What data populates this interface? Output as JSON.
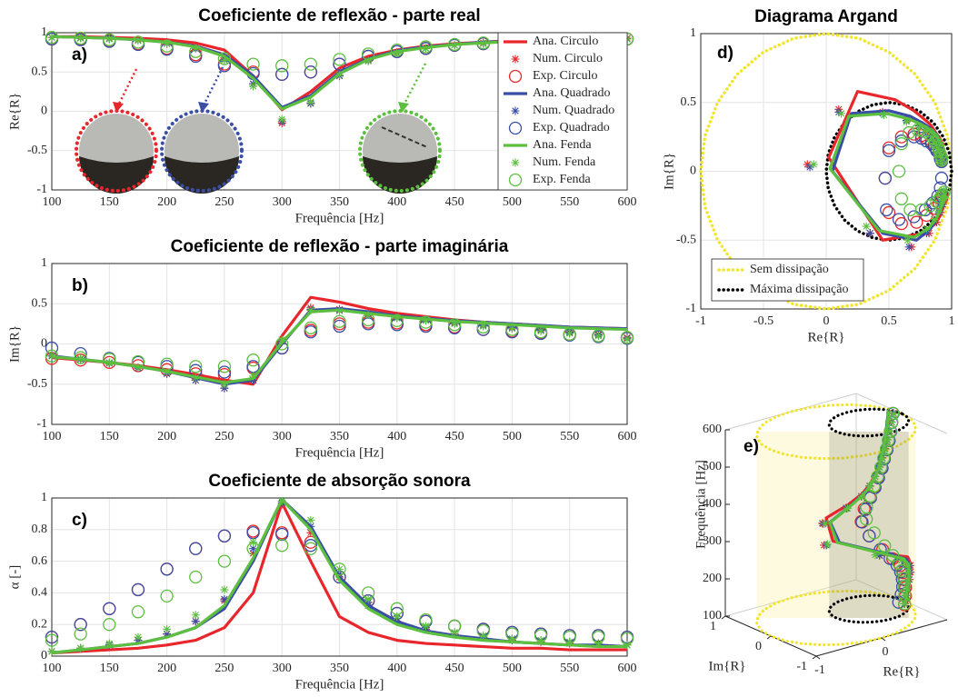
{
  "chart_data": [
    {
      "type": "line",
      "title": "Coeficiente de reflexão - parte real",
      "xlabel": "Frequência [Hz]",
      "ylabel": "Re{R}",
      "annotation": "a)",
      "grid": true,
      "legend": "upper right",
      "x": [
        100,
        125,
        150,
        175,
        200,
        225,
        250,
        275,
        300,
        325,
        350,
        375,
        400,
        425,
        450,
        475,
        500,
        525,
        550,
        575,
        600
      ],
      "xlim": [
        100,
        600
      ],
      "xticks": [
        100,
        150,
        200,
        250,
        300,
        350,
        400,
        450,
        500,
        550,
        600
      ],
      "ylim": [
        -1,
        1
      ],
      "yticks": [
        -1,
        -0.5,
        0,
        0.5,
        1
      ],
      "series": [
        {
          "name": "Ana. Circulo",
          "color": "#e8262b",
          "marker": "none",
          "values": [
            0.95,
            0.95,
            0.94,
            0.93,
            0.91,
            0.87,
            0.78,
            0.45,
            0.02,
            0.25,
            0.55,
            0.7,
            0.78,
            0.83,
            0.86,
            0.88,
            0.9,
            0.91,
            0.92,
            0.93,
            0.94
          ]
        },
        {
          "name": "Num. Circulo",
          "color": "#e8262b",
          "marker": "*",
          "values": [
            0.94,
            0.94,
            0.93,
            0.91,
            0.88,
            0.82,
            0.68,
            0.35,
            -0.15,
            0.1,
            0.45,
            0.65,
            0.75,
            0.8,
            0.84,
            0.87,
            0.89,
            0.9,
            0.91,
            0.92,
            0.93
          ]
        },
        {
          "name": "Exp. Circulo",
          "color": "#e8262b",
          "marker": "o",
          "values": [
            0.92,
            0.92,
            0.9,
            0.86,
            0.8,
            0.72,
            0.6,
            0.5,
            0.47,
            0.5,
            0.6,
            0.7,
            0.76,
            0.8,
            0.84,
            0.86,
            0.88,
            0.9,
            0.91,
            0.92,
            0.92
          ]
        },
        {
          "name": "Ana. Quadrado",
          "color": "#3a4ea6",
          "marker": "none",
          "values": [
            0.95,
            0.94,
            0.93,
            0.91,
            0.88,
            0.83,
            0.72,
            0.45,
            0.05,
            0.2,
            0.5,
            0.67,
            0.77,
            0.82,
            0.85,
            0.88,
            0.89,
            0.9,
            0.91,
            0.92,
            0.93
          ]
        },
        {
          "name": "Num. Quadrado",
          "color": "#3a4ea6",
          "marker": "*",
          "values": [
            0.94,
            0.93,
            0.92,
            0.9,
            0.86,
            0.8,
            0.66,
            0.35,
            -0.13,
            0.1,
            0.45,
            0.64,
            0.74,
            0.8,
            0.84,
            0.86,
            0.88,
            0.9,
            0.91,
            0.92,
            0.92
          ]
        },
        {
          "name": "Exp. Quadrado",
          "color": "#3a4ea6",
          "marker": "o",
          "values": [
            0.92,
            0.91,
            0.89,
            0.85,
            0.79,
            0.7,
            0.58,
            0.48,
            0.47,
            0.5,
            0.6,
            0.7,
            0.76,
            0.8,
            0.84,
            0.86,
            0.88,
            0.9,
            0.91,
            0.91,
            0.92
          ]
        },
        {
          "name": "Ana. Fenda",
          "color": "#5cbf3f",
          "marker": "none",
          "values": [
            0.95,
            0.94,
            0.93,
            0.91,
            0.88,
            0.82,
            0.7,
            0.42,
            0.03,
            0.18,
            0.48,
            0.66,
            0.76,
            0.81,
            0.85,
            0.87,
            0.89,
            0.9,
            0.91,
            0.92,
            0.93
          ]
        },
        {
          "name": "Num. Fenda",
          "color": "#5cbf3f",
          "marker": "*",
          "values": [
            0.94,
            0.93,
            0.92,
            0.9,
            0.86,
            0.8,
            0.65,
            0.32,
            -0.1,
            0.12,
            0.46,
            0.64,
            0.74,
            0.8,
            0.84,
            0.86,
            0.88,
            0.9,
            0.91,
            0.92,
            0.92
          ]
        },
        {
          "name": "Exp. Fenda",
          "color": "#5cbf3f",
          "marker": "o",
          "values": [
            0.94,
            0.93,
            0.91,
            0.88,
            0.83,
            0.76,
            0.67,
            0.6,
            0.58,
            0.6,
            0.66,
            0.73,
            0.78,
            0.82,
            0.85,
            0.87,
            0.89,
            0.9,
            0.91,
            0.92,
            0.92
          ]
        }
      ]
    },
    {
      "type": "line",
      "title": "Coeficiente de reflexão - parte imaginária",
      "xlabel": "Frequência [Hz]",
      "ylabel": "Im{R}",
      "annotation": "b)",
      "grid": true,
      "x": [
        100,
        125,
        150,
        175,
        200,
        225,
        250,
        275,
        300,
        325,
        350,
        375,
        400,
        425,
        450,
        475,
        500,
        525,
        550,
        575,
        600
      ],
      "xlim": [
        100,
        600
      ],
      "xticks": [
        100,
        150,
        200,
        250,
        300,
        350,
        400,
        450,
        500,
        550,
        600
      ],
      "ylim": [
        -1,
        1
      ],
      "yticks": [
        -1,
        -0.5,
        0,
        0.5,
        1
      ],
      "series": [
        {
          "color": "#e8262b",
          "marker": "none",
          "values": [
            -0.17,
            -0.2,
            -0.23,
            -0.27,
            -0.32,
            -0.38,
            -0.45,
            -0.5,
            0.1,
            0.58,
            0.52,
            0.44,
            0.38,
            0.34,
            0.3,
            0.27,
            0.25,
            0.23,
            0.21,
            0.2,
            0.19
          ]
        },
        {
          "color": "#e8262b",
          "marker": "*",
          "values": [
            -0.15,
            -0.19,
            -0.24,
            -0.3,
            -0.37,
            -0.45,
            -0.55,
            -0.45,
            0.05,
            0.45,
            0.43,
            0.38,
            0.34,
            0.3,
            0.27,
            0.24,
            0.21,
            0.18,
            0.15,
            0.12,
            0.08
          ]
        },
        {
          "color": "#e8262b",
          "marker": "o",
          "values": [
            -0.18,
            -0.2,
            -0.23,
            -0.27,
            -0.32,
            -0.37,
            -0.38,
            -0.3,
            -0.05,
            0.17,
            0.25,
            0.27,
            0.26,
            0.24,
            0.21,
            0.18,
            0.16,
            0.14,
            0.12,
            0.1,
            0.08
          ]
        },
        {
          "color": "#3a4ea6",
          "marker": "none",
          "values": [
            -0.15,
            -0.19,
            -0.23,
            -0.28,
            -0.34,
            -0.42,
            -0.5,
            -0.45,
            0.0,
            0.42,
            0.44,
            0.4,
            0.35,
            0.32,
            0.29,
            0.27,
            0.25,
            0.23,
            0.21,
            0.2,
            0.19
          ]
        },
        {
          "color": "#3a4ea6",
          "marker": "*",
          "values": [
            -0.15,
            -0.19,
            -0.24,
            -0.3,
            -0.37,
            -0.45,
            -0.55,
            -0.45,
            0.03,
            0.43,
            0.42,
            0.37,
            0.33,
            0.3,
            0.26,
            0.23,
            0.2,
            0.17,
            0.14,
            0.11,
            0.07
          ]
        },
        {
          "color": "#3a4ea6",
          "marker": "o",
          "values": [
            -0.05,
            -0.12,
            -0.18,
            -0.23,
            -0.28,
            -0.33,
            -0.35,
            -0.28,
            -0.05,
            0.15,
            0.22,
            0.25,
            0.24,
            0.22,
            0.2,
            0.18,
            0.15,
            0.13,
            0.11,
            0.09,
            0.07
          ]
        },
        {
          "color": "#5cbf3f",
          "marker": "none",
          "values": [
            -0.16,
            -0.19,
            -0.23,
            -0.28,
            -0.34,
            -0.41,
            -0.48,
            -0.43,
            0.02,
            0.4,
            0.42,
            0.38,
            0.34,
            0.31,
            0.28,
            0.26,
            0.24,
            0.22,
            0.2,
            0.19,
            0.18
          ]
        },
        {
          "color": "#5cbf3f",
          "marker": "*",
          "values": [
            -0.14,
            -0.18,
            -0.23,
            -0.29,
            -0.35,
            -0.42,
            -0.5,
            -0.4,
            0.05,
            0.42,
            0.41,
            0.36,
            0.32,
            0.29,
            0.25,
            0.22,
            0.19,
            0.16,
            0.13,
            0.1,
            0.06
          ]
        },
        {
          "color": "#5cbf3f",
          "marker": "o",
          "values": [
            -0.15,
            -0.17,
            -0.19,
            -0.22,
            -0.25,
            -0.28,
            -0.28,
            -0.2,
            0.0,
            0.2,
            0.28,
            0.3,
            0.29,
            0.27,
            0.24,
            0.21,
            0.18,
            0.15,
            0.12,
            0.1,
            0.08
          ]
        }
      ]
    },
    {
      "type": "line",
      "title": "Coeficiente de absorção sonora",
      "xlabel": "Frequência [Hz]",
      "ylabel": "α [-]",
      "annotation": "c)",
      "grid": true,
      "x": [
        100,
        125,
        150,
        175,
        200,
        225,
        250,
        275,
        300,
        325,
        350,
        375,
        400,
        425,
        450,
        475,
        500,
        525,
        550,
        575,
        600
      ],
      "xlim": [
        100,
        600
      ],
      "xticks": [
        100,
        150,
        200,
        250,
        300,
        350,
        400,
        450,
        500,
        550,
        600
      ],
      "ylim": [
        0,
        1
      ],
      "yticks": [
        0,
        0.2,
        0.4,
        0.6,
        0.8,
        1
      ],
      "series": [
        {
          "color": "#e8262b",
          "marker": "none",
          "values": [
            0.02,
            0.03,
            0.04,
            0.05,
            0.07,
            0.1,
            0.18,
            0.4,
            0.97,
            0.6,
            0.25,
            0.15,
            0.1,
            0.08,
            0.07,
            0.06,
            0.05,
            0.05,
            0.04,
            0.04,
            0.04
          ]
        },
        {
          "color": "#e8262b",
          "marker": "*",
          "values": [
            0.03,
            0.05,
            0.07,
            0.1,
            0.14,
            0.22,
            0.35,
            0.65,
            0.96,
            0.78,
            0.5,
            0.32,
            0.22,
            0.17,
            0.14,
            0.12,
            0.1,
            0.09,
            0.08,
            0.08,
            0.07
          ]
        },
        {
          "color": "#e8262b",
          "marker": "o",
          "values": [
            0.12,
            0.2,
            0.3,
            0.42,
            0.55,
            0.68,
            0.76,
            0.79,
            0.78,
            0.72,
            0.5,
            0.35,
            0.27,
            0.22,
            0.19,
            0.17,
            0.15,
            0.14,
            0.13,
            0.13,
            0.12
          ]
        },
        {
          "color": "#3a4ea6",
          "marker": "none",
          "values": [
            0.02,
            0.04,
            0.06,
            0.08,
            0.12,
            0.18,
            0.3,
            0.6,
            0.99,
            0.82,
            0.5,
            0.32,
            0.22,
            0.16,
            0.13,
            0.11,
            0.09,
            0.08,
            0.07,
            0.07,
            0.06
          ]
        },
        {
          "color": "#3a4ea6",
          "marker": "*",
          "values": [
            0.03,
            0.05,
            0.07,
            0.1,
            0.14,
            0.22,
            0.36,
            0.68,
            0.97,
            0.82,
            0.52,
            0.34,
            0.24,
            0.18,
            0.15,
            0.12,
            0.11,
            0.1,
            0.09,
            0.08,
            0.07
          ]
        },
        {
          "color": "#3a4ea6",
          "marker": "o",
          "values": [
            0.12,
            0.2,
            0.3,
            0.42,
            0.55,
            0.68,
            0.76,
            0.78,
            0.77,
            0.7,
            0.5,
            0.35,
            0.27,
            0.22,
            0.19,
            0.17,
            0.15,
            0.14,
            0.13,
            0.13,
            0.12
          ]
        },
        {
          "color": "#5cbf3f",
          "marker": "none",
          "values": [
            0.02,
            0.04,
            0.06,
            0.08,
            0.12,
            0.18,
            0.32,
            0.62,
            0.99,
            0.8,
            0.48,
            0.3,
            0.2,
            0.15,
            0.12,
            0.1,
            0.09,
            0.08,
            0.07,
            0.06,
            0.06
          ]
        },
        {
          "color": "#5cbf3f",
          "marker": "*",
          "values": [
            0.03,
            0.05,
            0.08,
            0.12,
            0.17,
            0.26,
            0.42,
            0.72,
            0.98,
            0.86,
            0.55,
            0.36,
            0.25,
            0.19,
            0.15,
            0.13,
            0.11,
            0.1,
            0.09,
            0.08,
            0.07
          ]
        },
        {
          "color": "#5cbf3f",
          "marker": "o",
          "values": [
            0.1,
            0.14,
            0.2,
            0.28,
            0.38,
            0.5,
            0.6,
            0.68,
            0.7,
            0.68,
            0.55,
            0.4,
            0.3,
            0.23,
            0.19,
            0.16,
            0.14,
            0.13,
            0.12,
            0.12,
            0.11
          ]
        }
      ]
    },
    {
      "type": "argand",
      "title": "Diagrama Argand",
      "xlabel": "Re{R}",
      "ylabel": "Im{R}",
      "annotation": "d)",
      "grid": true,
      "legend": "lower left",
      "xlim": [
        -1,
        1
      ],
      "xticks": [
        -1,
        -0.5,
        0,
        0.5,
        1
      ],
      "ylim": [
        -1,
        1
      ],
      "yticks": [
        -1,
        -0.5,
        0,
        0.5,
        1
      ],
      "series": [
        {
          "name": "Sem dissipação",
          "color": "#f2e530",
          "line": "dotted",
          "x": [
            1,
            0.966,
            0.866,
            0.707,
            0.5,
            0.259,
            0,
            -0.259,
            -0.5,
            -0.707,
            -0.866,
            -0.966,
            -1,
            -0.966,
            -0.866,
            -0.707,
            -0.5,
            -0.259,
            0,
            0.259,
            0.5,
            0.707,
            0.866,
            0.966
          ],
          "y": [
            0,
            0.259,
            0.5,
            0.707,
            0.866,
            0.966,
            1,
            0.966,
            0.866,
            0.707,
            0.5,
            0.259,
            0,
            -0.259,
            -0.5,
            -0.707,
            -0.866,
            -0.966,
            -1,
            -0.966,
            -0.866,
            -0.707,
            -0.5,
            -0.259
          ]
        },
        {
          "name": "Máxima dissipação",
          "color": "#000000",
          "line": "dotted",
          "x": [
            1,
            0.983,
            0.933,
            0.854,
            0.75,
            0.629,
            0.5,
            0.371,
            0.25,
            0.146,
            0.067,
            0.017,
            0,
            0.017,
            0.067,
            0.146,
            0.25,
            0.371,
            0.5,
            0.629,
            0.75,
            0.854,
            0.933,
            0.983
          ],
          "y": [
            0,
            0.129,
            0.25,
            0.354,
            0.433,
            0.483,
            0.5,
            0.483,
            0.433,
            0.354,
            0.25,
            0.129,
            0,
            -0.129,
            -0.25,
            -0.354,
            -0.433,
            -0.483,
            -0.5,
            -0.483,
            -0.433,
            -0.354,
            -0.25,
            -0.129
          ]
        }
      ]
    },
    {
      "type": "3d",
      "xlabel": "Re{R}",
      "ylabel": "Im{R}",
      "zlabel": "Frequência [Hz]",
      "annotation": "e)",
      "xlim": [
        -1,
        1
      ],
      "xticks": [
        -1,
        0
      ],
      "ylim": [
        -1,
        1
      ],
      "yticks": [
        -1,
        0,
        1
      ],
      "zlim": [
        100,
        600
      ],
      "zticks": [
        100,
        200,
        300,
        400,
        500,
        600
      ]
    }
  ]
}
